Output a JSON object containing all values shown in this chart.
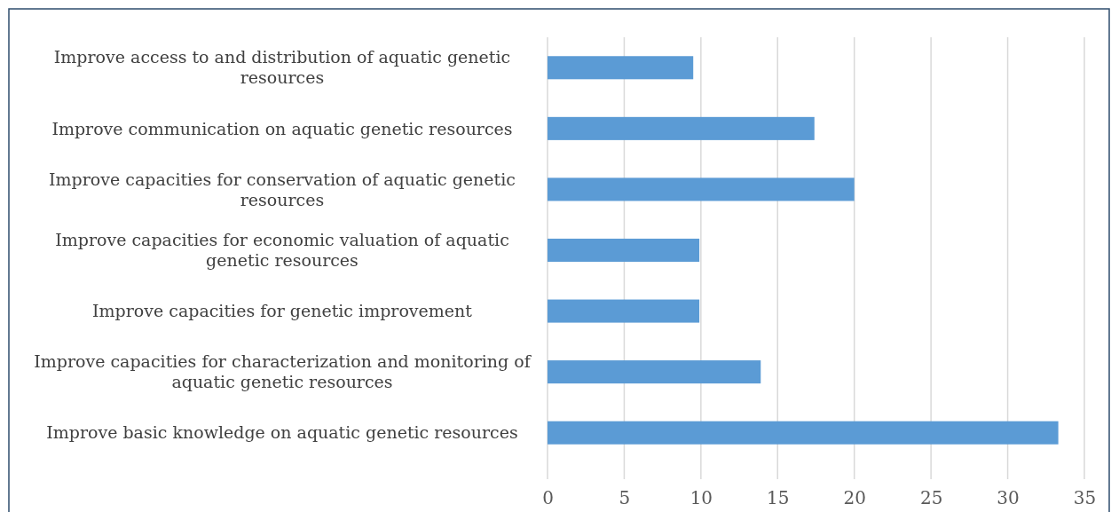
{
  "chart_data": {
    "type": "bar",
    "orientation": "horizontal",
    "categories": [
      "Improve access to and distribution of aquatic genetic resources",
      "Improve communication on aquatic genetic resources",
      "Improve capacities for conservation of aquatic genetic resources",
      "Improve capacities for economic valuation of aquatic genetic resources",
      "Improve capacities for genetic improvement",
      "Improve capacities for characterization and monitoring of aquatic genetic resources",
      "Improve basic knowledge on aquatic genetic resources"
    ],
    "values": [
      9.5,
      17.4,
      20,
      9.9,
      9.9,
      13.9,
      33.3
    ],
    "color": "#5b9bd5",
    "xlim": [
      0,
      35
    ],
    "xticks": [
      0,
      5,
      10,
      15,
      20,
      25,
      30,
      35
    ],
    "grid": "x"
  }
}
